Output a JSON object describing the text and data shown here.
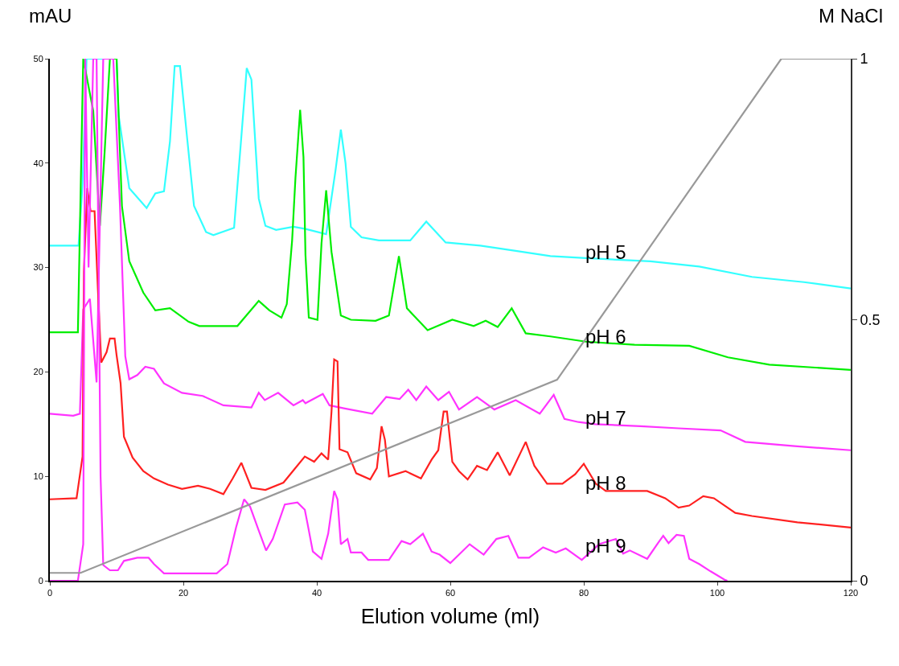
{
  "chart_data": {
    "type": "line",
    "xlabel": "Elution volume (ml)",
    "ylabel": "mAU",
    "y2label": "M NaCl",
    "xlim": [
      0,
      120
    ],
    "xticks": [
      0,
      20,
      40,
      60,
      80,
      100,
      120
    ],
    "ylim": [
      0,
      50
    ],
    "yticks": [
      0,
      10,
      20,
      30,
      40,
      50
    ],
    "y2lim": [
      0,
      1
    ],
    "y2ticks": [
      0,
      0.5,
      1
    ],
    "series": [
      {
        "name": "pH 5",
        "color": "#33ffff",
        "x": [
          0,
          4.3,
          4.9,
          5.5,
          10,
          10.3,
          11.9,
          14.5,
          15.8,
          17.1,
          18,
          18.7,
          19.5,
          20.6,
          21.6,
          23.4,
          24.5,
          27.6,
          28.7,
          29.5,
          30.2,
          31.3,
          32.3,
          33.9,
          36.5,
          38.3,
          41.4,
          42.8,
          43.6,
          44.3,
          45.1,
          46.7,
          49.3,
          54,
          56.4,
          59.3,
          64.5,
          69.8,
          75,
          80.3,
          90,
          97.3,
          105.2,
          113,
          120
        ],
        "values": [
          32.1,
          32.1,
          38,
          50,
          50,
          44.6,
          37.6,
          35.7,
          37.1,
          37.3,
          42.1,
          49.3,
          49.3,
          42.2,
          35.9,
          33.4,
          33.1,
          33.8,
          42.6,
          49.1,
          48,
          36.6,
          34,
          33.6,
          33.9,
          33.7,
          33.2,
          39.3,
          43.2,
          40,
          33.9,
          32.9,
          32.6,
          32.6,
          34.4,
          32.4,
          32.1,
          31.6,
          31.1,
          30.9,
          30.6,
          30.1,
          29.1,
          28.6,
          28
        ]
      },
      {
        "name": "pH 6",
        "color": "#00ee00",
        "x": [
          0,
          4.2,
          5,
          6.5,
          7.5,
          8.2,
          9,
          10,
          10.8,
          11.9,
          14,
          15.8,
          18,
          20.8,
          22.4,
          28.1,
          31.3,
          32.9,
          34.7,
          35.5,
          36.3,
          36.8,
          37.5,
          38,
          38.3,
          38.8,
          40.1,
          40.7,
          41.4,
          42.2,
          43.6,
          45.1,
          48.8,
          50.8,
          52.3,
          53.5,
          56.6,
          60.3,
          63.5,
          65.3,
          67.1,
          69.2,
          71.3,
          75,
          80.3,
          87.6,
          95.8,
          101.6,
          107.8,
          120
        ],
        "values": [
          23.8,
          23.8,
          50,
          45,
          34,
          41,
          50,
          50,
          35.9,
          30.6,
          27.6,
          25.9,
          26.1,
          24.8,
          24.4,
          24.4,
          26.8,
          25.9,
          25.2,
          26.5,
          32.6,
          38.6,
          45.1,
          40.6,
          31.2,
          25.2,
          25,
          32.3,
          37.4,
          31.5,
          25.4,
          25,
          24.9,
          25.4,
          31.1,
          26.1,
          24,
          25,
          24.4,
          24.9,
          24.3,
          26.1,
          23.7,
          23.4,
          22.9,
          22.6,
          22.5,
          21.4,
          20.7,
          20.2
        ]
      },
      {
        "name": "pH 7",
        "color": "#ff33ff",
        "x": [
          0,
          3.5,
          4.5,
          5,
          6,
          7,
          8,
          9.5,
          10.5,
          11.3,
          11.9,
          13.1,
          14.3,
          15.6,
          17.1,
          19.8,
          22.9,
          26,
          30.2,
          31.3,
          32.2,
          34.2,
          36.5,
          37.9,
          38.3,
          40.9,
          41.9,
          44.2,
          48.3,
          50.4,
          52.4,
          53.7,
          54.9,
          56.4,
          58.2,
          59.8,
          61.3,
          64,
          66.6,
          69.8,
          73.4,
          75.5,
          77.1,
          79.2,
          81.7,
          88.5,
          94.2,
          100.5,
          104.2,
          111.6,
          120
        ],
        "values": [
          16,
          15.8,
          16,
          26,
          27,
          19,
          50,
          50,
          36,
          21.5,
          19.3,
          19.7,
          20.5,
          20.3,
          18.9,
          18,
          17.7,
          16.8,
          16.6,
          18,
          17.3,
          18,
          16.8,
          17.3,
          17,
          17.9,
          16.8,
          16.5,
          16,
          17.6,
          17.4,
          18.3,
          17.3,
          18.6,
          17.3,
          18.1,
          16.4,
          17.6,
          16.4,
          17.3,
          16,
          17.8,
          15.5,
          15.2,
          15,
          14.8,
          14.6,
          14.4,
          13.3,
          12.9,
          12.5
        ]
      },
      {
        "name": "pH 8",
        "color": "#ff2020",
        "x": [
          0,
          4,
          4.9,
          5.1,
          5.6,
          6.1,
          6.7,
          7.2,
          7.7,
          8.5,
          9,
          9.7,
          10,
          10.6,
          11.1,
          12.4,
          14,
          15.6,
          17.7,
          19.8,
          22.2,
          24,
          26,
          27.4,
          28.7,
          30.2,
          32.3,
          35,
          36.8,
          38.2,
          39.6,
          40.7,
          41.7,
          42.2,
          42.6,
          43.1,
          43.4,
          44.6,
          45.9,
          48,
          49,
          49.7,
          50.2,
          50.8,
          53.3,
          55.6,
          57.2,
          58.2,
          59,
          59.5,
          60.3,
          61.3,
          62.6,
          64,
          65.5,
          67.1,
          68.9,
          71.3,
          72.6,
          74.5,
          76.8,
          78.7,
          80,
          81.8,
          83.3,
          89.5,
          92.2,
          94.2,
          95.8,
          97.9,
          99.5,
          102.7,
          105.2,
          112,
          120
        ],
        "values": [
          7.8,
          7.9,
          11.9,
          29.6,
          37.6,
          35.4,
          35.4,
          27.9,
          20.9,
          21.9,
          23.2,
          23.2,
          21.6,
          18.9,
          13.8,
          11.8,
          10.5,
          9.8,
          9.2,
          8.8,
          9.1,
          8.8,
          8.3,
          9.8,
          11.3,
          8.9,
          8.7,
          9.4,
          10.8,
          11.9,
          11.4,
          12.2,
          11.6,
          16.2,
          21.2,
          21,
          12.6,
          12.3,
          10.3,
          9.7,
          10.8,
          14.8,
          13.5,
          10,
          10.5,
          9.8,
          11.6,
          12.5,
          16.2,
          16.2,
          11.4,
          10.5,
          9.7,
          11,
          10.6,
          12.3,
          10.1,
          13.3,
          11,
          9.3,
          9.3,
          10.2,
          11.2,
          9.3,
          8.6,
          8.6,
          7.9,
          7,
          7.2,
          8.1,
          7.9,
          6.5,
          6.2,
          5.6,
          5.1
        ]
      },
      {
        "name": "pH 9",
        "color": "#ff33ff",
        "x": [
          0,
          4.2,
          5,
          5.3,
          5.8,
          6.5,
          7,
          7.6,
          8,
          9,
          10.2,
          11.1,
          13.1,
          14.8,
          15.6,
          17.1,
          25,
          26.6,
          27.9,
          29.1,
          30,
          31.3,
          32.4,
          33.4,
          35.2,
          37.1,
          38.2,
          38.6,
          39.4,
          40.7,
          41.7,
          42.6,
          43.1,
          43.6,
          44.6,
          45.1,
          46.7,
          47.7,
          50.8,
          52.7,
          54,
          55.9,
          57.2,
          58.4,
          60,
          62.9,
          65,
          66.9,
          68.7,
          70.2,
          71.8,
          73.9,
          75.8,
          77.3,
          79.7,
          82.3,
          84.8,
          85.9,
          86.9,
          89.5,
          91.1,
          91.9,
          92.7,
          93.9,
          95,
          95.8,
          97.3,
          99,
          101.1,
          101.5
        ],
        "values": [
          0,
          0,
          3.5,
          50,
          30,
          50,
          50,
          10,
          1.5,
          1,
          1,
          1.9,
          2.2,
          2.2,
          1.6,
          0.7,
          0.7,
          1.6,
          5.1,
          7.8,
          7.1,
          4.8,
          2.9,
          4,
          7.3,
          7.5,
          6.8,
          5.5,
          2.8,
          2.1,
          4.5,
          8.6,
          7.8,
          3.5,
          4,
          2.7,
          2.7,
          2,
          2,
          3.8,
          3.5,
          4.5,
          2.8,
          2.5,
          1.7,
          3.5,
          2.5,
          4,
          4.3,
          2.2,
          2.2,
          3.2,
          2.7,
          3.1,
          2,
          3.5,
          4,
          2.6,
          2.9,
          2.1,
          3.6,
          4.3,
          3.6,
          4.4,
          4.3,
          2.1,
          1.6,
          0.9,
          0.1,
          0
        ]
      },
      {
        "color": "#999999",
        "axis": "y2",
        "x": [
          0,
          4.6,
          76,
          109.6,
          120
        ],
        "values": [
          0.015,
          0.015,
          0.385,
          1,
          1
        ]
      }
    ]
  }
}
